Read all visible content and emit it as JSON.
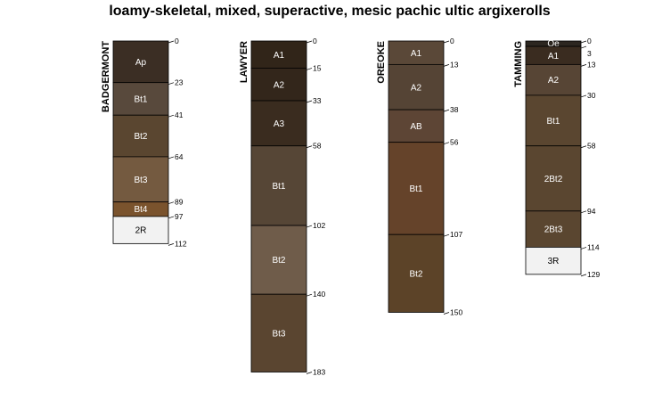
{
  "title": "loamy-skeletal, mixed, superactive, mesic pachic ultic argixerolls",
  "chart_data": {
    "type": "soil-profile-sketch",
    "title": "loamy-skeletal, mixed, superactive, mesic pachic ultic argixerolls",
    "depth_units": "cm",
    "profiles": [
      {
        "name": "BADGERMONT",
        "horizons": [
          {
            "name": "Ap",
            "top": 0,
            "bottom": 23,
            "color": "#3b2e24"
          },
          {
            "name": "Bt1",
            "top": 23,
            "bottom": 41,
            "color": "#58493c"
          },
          {
            "name": "Bt2",
            "top": 41,
            "bottom": 64,
            "color": "#5a4630"
          },
          {
            "name": "Bt3",
            "top": 64,
            "bottom": 89,
            "color": "#745a40"
          },
          {
            "name": "Bt4",
            "top": 89,
            "bottom": 97,
            "color": "#7a532d"
          },
          {
            "name": "2R",
            "top": 97,
            "bottom": 112,
            "color": "#f2f2f2"
          }
        ],
        "depth_labels": [
          "0",
          "23",
          "41",
          "64",
          "89",
          "97",
          "112"
        ]
      },
      {
        "name": "LAWYER",
        "horizons": [
          {
            "name": "A1",
            "top": 0,
            "bottom": 15,
            "color": "#312519"
          },
          {
            "name": "A2",
            "top": 15,
            "bottom": 33,
            "color": "#33261b"
          },
          {
            "name": "A3",
            "top": 33,
            "bottom": 58,
            "color": "#3a2c1f"
          },
          {
            "name": "Bt1",
            "top": 58,
            "bottom": 102,
            "color": "#564636"
          },
          {
            "name": "Bt2",
            "top": 102,
            "bottom": 140,
            "color": "#6f5c4a"
          },
          {
            "name": "Bt3",
            "top": 140,
            "bottom": 183,
            "color": "#5a4530"
          }
        ],
        "depth_labels": [
          "0",
          "15",
          "33",
          "58",
          "102",
          "140",
          "183"
        ]
      },
      {
        "name": "OREOKE",
        "horizons": [
          {
            "name": "A1",
            "top": 0,
            "bottom": 13,
            "color": "#5a4838"
          },
          {
            "name": "A2",
            "top": 13,
            "bottom": 38,
            "color": "#554435"
          },
          {
            "name": "AB",
            "top": 38,
            "bottom": 56,
            "color": "#5d4535"
          },
          {
            "name": "Bt1",
            "top": 56,
            "bottom": 107,
            "color": "#65432a"
          },
          {
            "name": "Bt2",
            "top": 107,
            "bottom": 150,
            "color": "#5c4328"
          }
        ],
        "depth_labels": [
          "0",
          "13",
          "38",
          "56",
          "107",
          "150"
        ]
      },
      {
        "name": "TAMMING",
        "horizons": [
          {
            "name": "Oe",
            "top": 0,
            "bottom": 3,
            "color": "#2c2620"
          },
          {
            "name": "A1",
            "top": 3,
            "bottom": 13,
            "color": "#3a2c20"
          },
          {
            "name": "A2",
            "top": 13,
            "bottom": 30,
            "color": "#574535"
          },
          {
            "name": "Bt1",
            "top": 30,
            "bottom": 58,
            "color": "#5a4630"
          },
          {
            "name": "2Bt2",
            "top": 58,
            "bottom": 94,
            "color": "#5a4630"
          },
          {
            "name": "2Bt3",
            "top": 94,
            "bottom": 114,
            "color": "#5a4630"
          },
          {
            "name": "3R",
            "top": 114,
            "bottom": 129,
            "color": "#f2f2f2"
          }
        ],
        "depth_labels": [
          "0",
          "3",
          "13",
          "30",
          "58",
          "94",
          "114",
          "129"
        ]
      }
    ]
  }
}
